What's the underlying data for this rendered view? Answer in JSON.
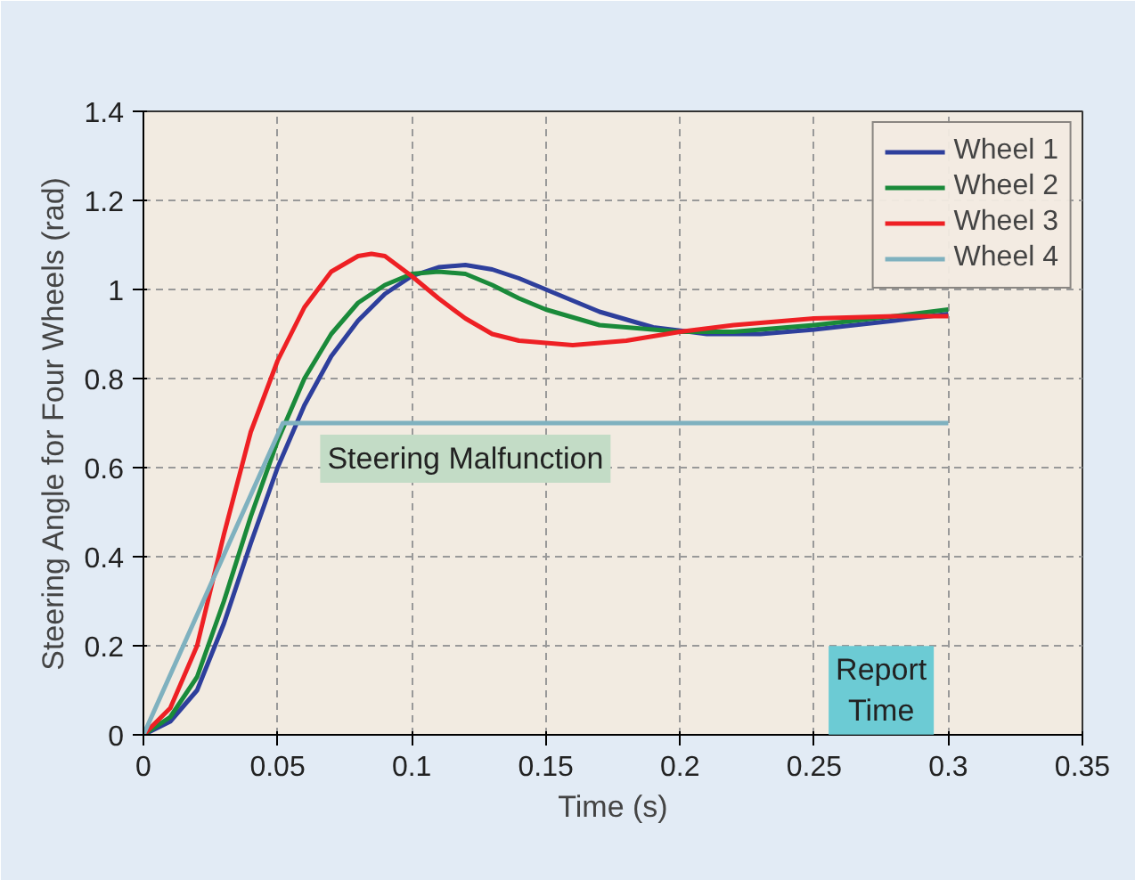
{
  "chart_data": {
    "type": "line",
    "xlabel": "Time (s)",
    "ylabel": "Steering Angle for Four Wheels (rad)",
    "xlim": [
      0,
      0.35
    ],
    "xticks": [
      0,
      0.05,
      0.1,
      0.15,
      0.2,
      0.25,
      0.3,
      0.35
    ],
    "ylim": [
      0,
      1.4
    ],
    "yticks": [
      0,
      0.2,
      0.4,
      0.6,
      0.8,
      1,
      1.2,
      1.4
    ],
    "grid": true,
    "legend": "top right",
    "line_style": "solid",
    "annotations": [
      "Steering Malfunction",
      "Report\nTime"
    ],
    "series": [
      {
        "name": "Wheel 1",
        "color": "#2e3f9c",
        "x": [
          0,
          0.01,
          0.02,
          0.03,
          0.04,
          0.05,
          0.06,
          0.07,
          0.08,
          0.09,
          0.1,
          0.11,
          0.12,
          0.13,
          0.14,
          0.15,
          0.17,
          0.19,
          0.21,
          0.23,
          0.25,
          0.28,
          0.3
        ],
        "values": [
          0,
          0.03,
          0.1,
          0.25,
          0.43,
          0.6,
          0.74,
          0.85,
          0.93,
          0.99,
          1.03,
          1.05,
          1.055,
          1.045,
          1.025,
          1.0,
          0.95,
          0.915,
          0.9,
          0.9,
          0.91,
          0.93,
          0.945
        ]
      },
      {
        "name": "Wheel 2",
        "color": "#1a8a3a",
        "x": [
          0,
          0.01,
          0.02,
          0.03,
          0.04,
          0.05,
          0.06,
          0.07,
          0.08,
          0.09,
          0.1,
          0.11,
          0.12,
          0.13,
          0.14,
          0.15,
          0.17,
          0.2,
          0.22,
          0.25,
          0.28,
          0.3
        ],
        "values": [
          0,
          0.04,
          0.13,
          0.3,
          0.49,
          0.66,
          0.8,
          0.9,
          0.97,
          1.01,
          1.035,
          1.04,
          1.035,
          1.01,
          0.98,
          0.955,
          0.92,
          0.905,
          0.905,
          0.92,
          0.94,
          0.955
        ]
      },
      {
        "name": "Wheel 3",
        "color": "#ee2024",
        "x": [
          0,
          0.01,
          0.02,
          0.03,
          0.04,
          0.05,
          0.06,
          0.07,
          0.08,
          0.085,
          0.09,
          0.1,
          0.11,
          0.12,
          0.13,
          0.14,
          0.16,
          0.18,
          0.2,
          0.22,
          0.25,
          0.28,
          0.3
        ],
        "values": [
          0,
          0.06,
          0.2,
          0.45,
          0.68,
          0.84,
          0.96,
          1.04,
          1.075,
          1.08,
          1.075,
          1.03,
          0.98,
          0.935,
          0.9,
          0.885,
          0.875,
          0.885,
          0.905,
          0.92,
          0.935,
          0.94,
          0.94
        ]
      },
      {
        "name": "Wheel 4",
        "color": "#7fb1bf",
        "x": [
          0,
          0.052,
          0.3
        ],
        "values": [
          0,
          0.7,
          0.7
        ]
      }
    ]
  }
}
